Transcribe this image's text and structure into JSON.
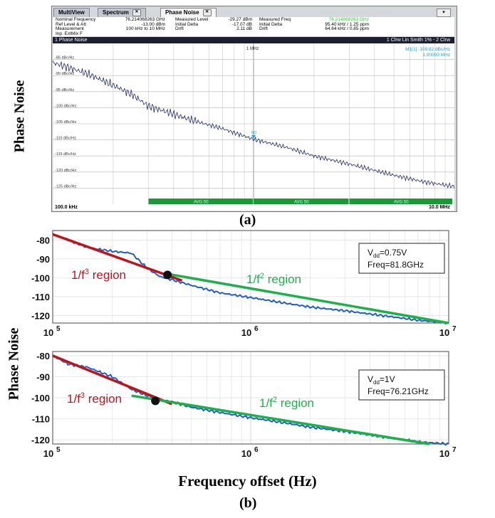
{
  "ylabel_a": "Phase Noise",
  "ylabel_b": "Phase Noise",
  "caption_a": "(a)",
  "caption_b": "(b)",
  "xlabel_b": "Frequency offset (Hz)",
  "analyzer": {
    "tabs": [
      "MultiView",
      "Spectrum",
      "Phase Noise"
    ],
    "info": [
      {
        "label": "Nominal Frequency",
        "value": "76.214068263 GHz"
      },
      {
        "label": "Ref Level & Att",
        "value": "-13.00 dBm"
      },
      {
        "label": "Measurement",
        "value": "100 kHz to 10 MHz"
      },
      {
        "label": "Inp. ExtMix F",
        "value": ""
      }
    ],
    "info2": [
      {
        "label": "Measured Level",
        "value": "-29.27 dBm"
      },
      {
        "label": "Initial Delta",
        "value": "-17.07 dB"
      },
      {
        "label": "Drift",
        "value": "2.11 dB"
      }
    ],
    "info3": [
      {
        "label": "Measured Freq",
        "value": "76.214068263 GHz"
      },
      {
        "label": "Initial Delta",
        "value": "95.40 kHz / 1.25 ppm"
      },
      {
        "label": "Drift",
        "value": "64.64 kHz / 0.85 ppm"
      }
    ],
    "trace_title": "1 Phase Noise",
    "trace_info": "1 Clrw Lin Smith 1% - 2 Clrw",
    "marker_label": "M1[1]",
    "marker_value": "-109.82 dBc/Hz",
    "marker_freq": "1.00000 MHz",
    "marker_tag": "M1",
    "decade_label": "1 MHz",
    "avg_label": "AVG 50",
    "start_label": "100.0 kHz",
    "stop_label": "10.0 MHz",
    "colors": {
      "trace": "#1f2a66",
      "avg_bar": "#1a9a36",
      "marker": "#1aa0d8",
      "freq_green": "#33cc33"
    }
  },
  "chart_data": [
    {
      "type": "line",
      "panel": "a",
      "xscale": "log",
      "xlim": [
        100000,
        10000000
      ],
      "ylim": [
        -130,
        -80
      ],
      "yunit": "dBc/Hz",
      "yticks": [
        -85,
        -90,
        -95,
        -100,
        -105,
        -110,
        -115,
        -120,
        -125
      ],
      "ytick_labels": [
        "-85 dBc/Hz",
        "-90 dBc/Hz",
        "-95 dBc/Hz",
        "-100 dBc/Hz",
        "-105 dBc/Hz",
        "-110 dBc/Hz",
        "-115 dBc/Hz",
        "-120 dBc/Hz",
        "-125 dBc/Hz"
      ],
      "x": [
        100000,
        120000,
        150000,
        200000,
        250000,
        300000,
        400000,
        500000,
        700000,
        1000000,
        1500000,
        2000000,
        3000000,
        5000000,
        7000000,
        10000000
      ],
      "y": [
        -86,
        -87.5,
        -89.5,
        -93,
        -96,
        -99.5,
        -102,
        -104,
        -106.5,
        -109.8,
        -112.5,
        -115,
        -117.5,
        -121,
        -123,
        -124.5
      ],
      "marker": {
        "x": 1000000,
        "y": -109.82
      },
      "grid": true
    },
    {
      "type": "line",
      "panel": "b-top",
      "xscale": "log",
      "xlim": [
        100000,
        10000000
      ],
      "ylim": [
        -124,
        -75
      ],
      "yticks": [
        -80,
        -90,
        -100,
        -110,
        -120
      ],
      "xtick_labels": [
        "10^5",
        "10^6",
        "10^7"
      ],
      "grid": true,
      "legend_box": {
        "vdd": "=0.75V",
        "freq": "Freq=81.8GHz"
      },
      "measured": {
        "x": [
          100000,
          120000,
          150000,
          200000,
          250000,
          300000,
          350000,
          400000,
          500000,
          700000,
          1000000,
          1500000,
          2000000,
          3000000,
          5000000,
          7000000,
          10000000
        ],
        "y": [
          -77,
          -80,
          -84,
          -86,
          -87,
          -95,
          -99.5,
          -101,
          -104,
          -108,
          -110.5,
          -113.5,
          -115.5,
          -117.5,
          -120.5,
          -122.5,
          -124
        ]
      },
      "fit_f3": {
        "x": [
          100000,
          450000
        ],
        "y": [
          -77,
          -101.5
        ],
        "label": "1/f^3 region"
      },
      "fit_f2": {
        "x": [
          380000,
          10000000
        ],
        "y": [
          -98,
          -124
        ],
        "label": "1/f^2 region"
      },
      "corner": {
        "x": 380000,
        "y": -98.5
      }
    },
    {
      "type": "line",
      "panel": "b-bottom",
      "xscale": "log",
      "xlim": [
        100000,
        10000000
      ],
      "ylim": [
        -122,
        -78
      ],
      "yticks": [
        -80,
        -90,
        -100,
        -110,
        -120
      ],
      "xtick_labels": [
        "10^5",
        "10^6",
        "10^7"
      ],
      "grid": true,
      "legend_box": {
        "vdd": "=1V",
        "freq": "Freq=76.21GHz"
      },
      "measured": {
        "x": [
          100000,
          120000,
          150000,
          200000,
          250000,
          300000,
          350000,
          400000,
          500000,
          700000,
          1000000,
          1500000,
          2000000,
          3000000,
          5000000,
          7000000,
          10000000
        ],
        "y": [
          -80,
          -84,
          -85.5,
          -90,
          -96,
          -99,
          -101,
          -102,
          -104.5,
          -107,
          -109.5,
          -112,
          -114,
          -116,
          -119,
          -121,
          -122
        ]
      },
      "fit_f3": {
        "x": [
          100000,
          400000
        ],
        "y": [
          -80,
          -103
        ],
        "label": "1/f^3 region"
      },
      "fit_f2": {
        "x": [
          250000,
          8000000
        ],
        "y": [
          -99,
          -122
        ],
        "label": "1/f^2 region"
      },
      "corner": {
        "x": 330000,
        "y": -101.5
      }
    }
  ]
}
